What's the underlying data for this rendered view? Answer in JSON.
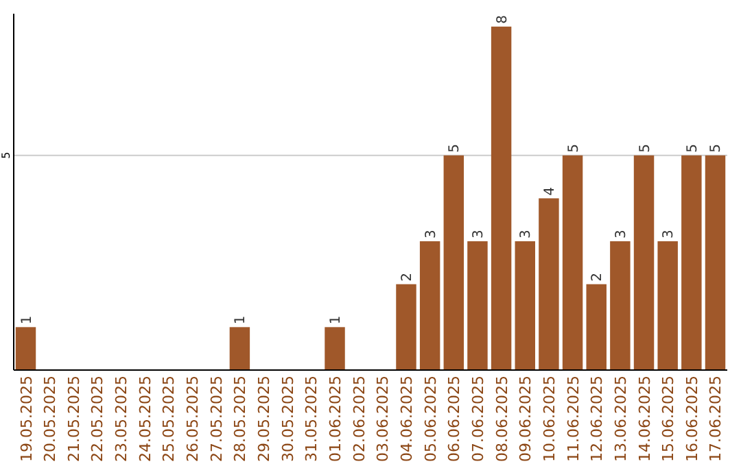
{
  "chart_data": {
    "type": "bar",
    "categories": [
      "19.05.2025",
      "20.05.2025",
      "21.05.2025",
      "22.05.2025",
      "23.05.2025",
      "24.05.2025",
      "25.05.2025",
      "26.05.2025",
      "27.05.2025",
      "28.05.2025",
      "29.05.2025",
      "30.05.2025",
      "31.05.2025",
      "01.06.2025",
      "02.06.2025",
      "03.06.2025",
      "04.06.2025",
      "05.06.2025",
      "06.06.2025",
      "07.06.2025",
      "08.06.2025",
      "09.06.2025",
      "10.06.2025",
      "11.06.2025",
      "12.06.2025",
      "13.06.2025",
      "14.06.2025",
      "15.06.2025",
      "16.06.2025",
      "17.06.2025"
    ],
    "values": [
      1,
      0,
      0,
      0,
      0,
      0,
      0,
      0,
      0,
      1,
      0,
      0,
      0,
      1,
      0,
      0,
      2,
      3,
      5,
      3,
      8,
      3,
      4,
      5,
      2,
      3,
      5,
      3,
      5,
      5
    ],
    "value_labels": [
      "1",
      null,
      null,
      null,
      null,
      null,
      null,
      null,
      null,
      "1",
      null,
      null,
      null,
      "1",
      null,
      null,
      "2",
      "3",
      "5",
      "3",
      "8",
      "3",
      "4",
      "5",
      "2",
      "3",
      "5",
      "3",
      "5",
      "5"
    ],
    "color": "#a0582a",
    "ylim": [
      0,
      8.3
    ],
    "yticks": [
      5
    ],
    "grid": "y"
  }
}
